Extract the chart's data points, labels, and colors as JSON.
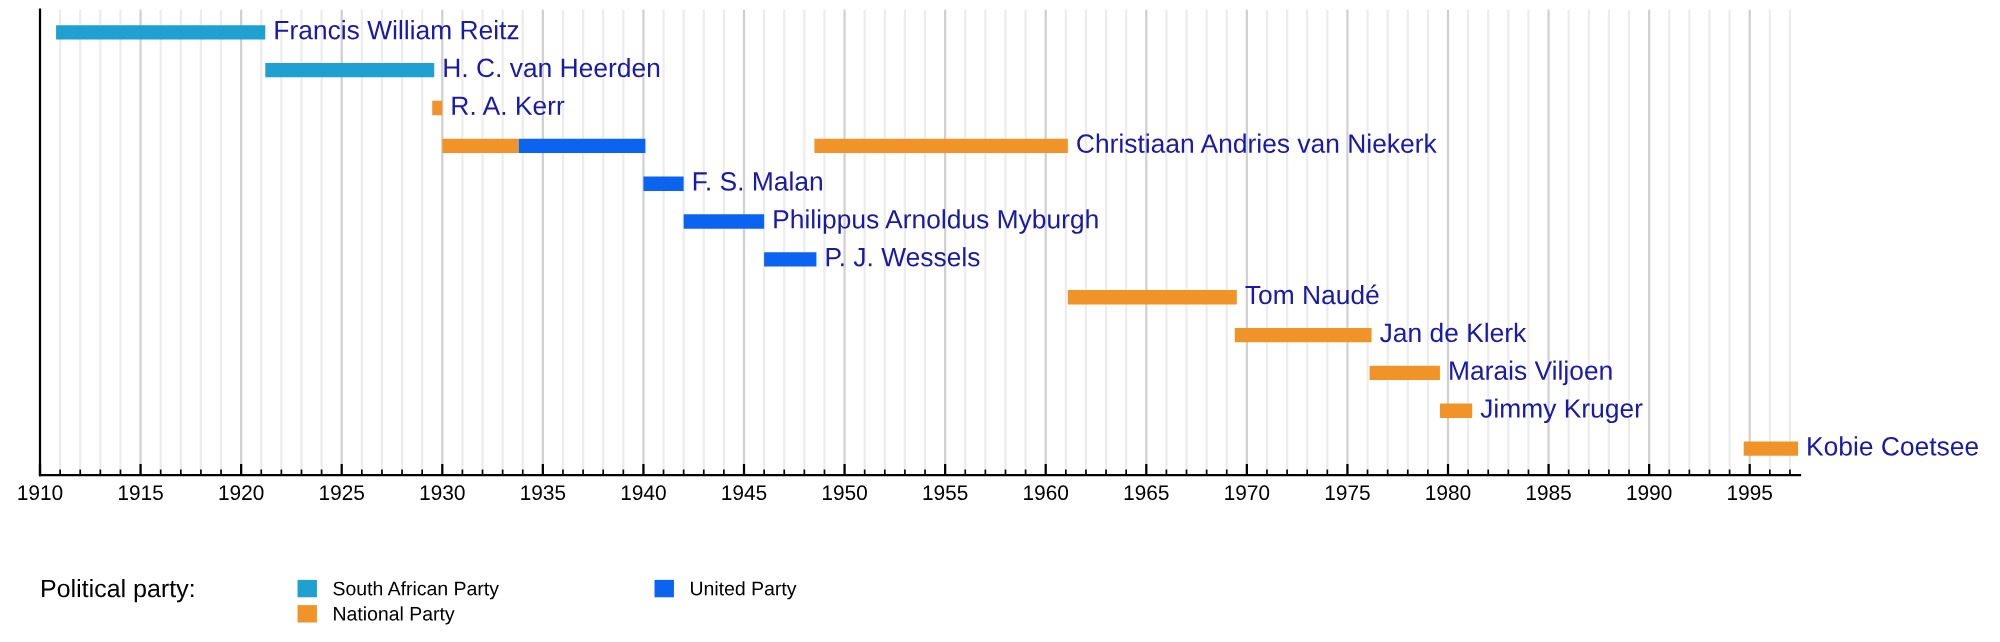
{
  "chart_data": {
    "type": "bar",
    "orientation": "horizontal",
    "categories": [
      null,
      null,
      null,
      null,
      null,
      null,
      null,
      null,
      null,
      null,
      null,
      null
    ],
    "annotations": [
      {
        "text": "Francis William Reitz",
        "x": 1921.2
      },
      {
        "text": "H. C. van Heerden",
        "x": 1929.6
      },
      {
        "text": "R. A. Kerr",
        "x": 1930.0
      },
      {
        "text": "Christiaan Andries van Niekerk",
        "x": 1961.1
      },
      {
        "text": "F. S. Malan",
        "x": 1942.0
      },
      {
        "text": "Philippus Arnoldus Myburgh",
        "x": 1946.0
      },
      {
        "text": "P. J. Wessels",
        "x": 1948.6
      },
      {
        "text": "Tom Naudé",
        "x": 1969.5
      },
      {
        "text": "Jan de Klerk",
        "x": 1976.2
      },
      {
        "text": "Marais Viljoen",
        "x": 1979.6
      },
      {
        "text": "Jimmy Kruger",
        "x": 1981.2
      },
      {
        "text": "Kobie Coetsee",
        "x": 1997.4
      }
    ],
    "series": [
      {
        "name": "South African Party",
        "color": "#20a0d0",
        "base": [
          1910.8,
          1921.2,
          null,
          null,
          null,
          null,
          null,
          null,
          null,
          null,
          null,
          null
        ],
        "values": [
          10.4,
          8.4,
          null,
          null,
          null,
          null,
          null,
          null,
          null,
          null,
          null,
          null
        ]
      },
      {
        "name": "National Party",
        "color": "#f0942a",
        "base": [
          null,
          null,
          1929.5,
          1930.0,
          null,
          null,
          null,
          1961.1,
          1969.4,
          1976.1,
          1979.6,
          1994.7
        ],
        "values": [
          null,
          null,
          0.5,
          3.8,
          null,
          null,
          null,
          8.4,
          6.8,
          3.5,
          1.6,
          2.7
        ]
      },
      {
        "name": "United Party",
        "color": "#0a64f0",
        "base": [
          null,
          null,
          null,
          1933.8,
          1940.0,
          1942.0,
          1946.0,
          null,
          null,
          null,
          null,
          null
        ],
        "values": [
          null,
          null,
          null,
          6.3,
          2.0,
          4.0,
          2.6,
          null,
          null,
          null,
          null,
          null
        ]
      },
      {
        "color": "#f0942a",
        "base": [
          null,
          null,
          null,
          1948.5,
          null,
          null,
          null,
          null,
          null,
          null,
          null,
          null
        ],
        "values": [
          null,
          null,
          null,
          12.6,
          null,
          null,
          null,
          null,
          null,
          null,
          null,
          null
        ]
      }
    ],
    "xlim": [
      1910,
      1997.5
    ],
    "xticks": [
      1910,
      1915,
      1920,
      1925,
      1930,
      1935,
      1940,
      1945,
      1950,
      1955,
      1960,
      1965,
      1970,
      1975,
      1980,
      1985,
      1990,
      1995
    ],
    "grid": "x",
    "legend": "bottom",
    "legend_title": "Political party:",
    "tick_labels": "x"
  }
}
